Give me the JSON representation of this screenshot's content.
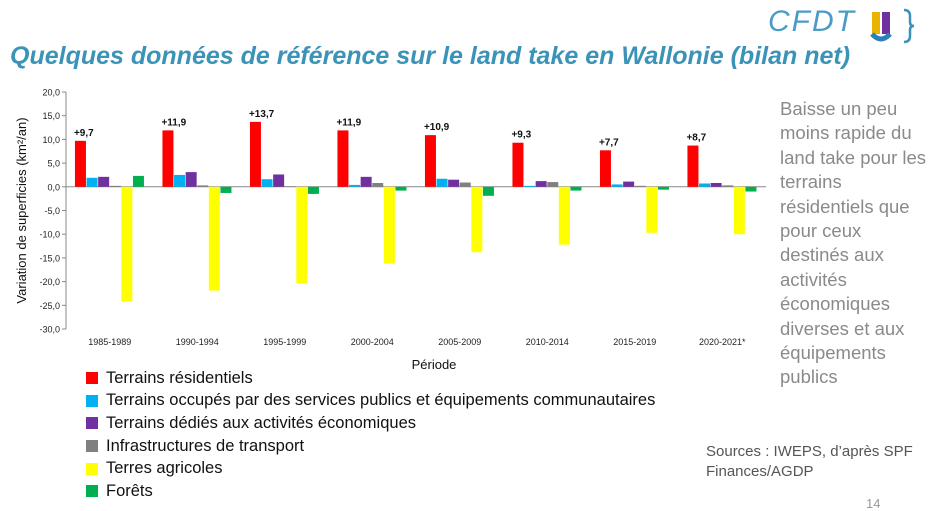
{
  "slide": {
    "title": "Quelques données de référence sur le land take en Wallonie (bilan net)",
    "side_note": "Baisse un peu moins rapide du land take pour les terrains résidentiels que pour ceux destinés aux activités économiques diverses et aux équipements publics",
    "sources": "Sources : IWEPS, d’après SPF Finances/AGDP",
    "page_number": "14",
    "logo_text": "CFDT"
  },
  "chart_data": {
    "type": "bar",
    "title": "",
    "xlabel": "Période",
    "ylabel": "Variation de superficies (km²/an)",
    "ylim": [
      -30,
      20
    ],
    "yticks": [
      "20,0",
      "15,0",
      "10,0",
      "5,0",
      "0,0",
      "-5,0",
      "-10,0",
      "-15,0",
      "-20,0",
      "-25,0",
      "-30,0"
    ],
    "grid": false,
    "legend_position": "bottom-left",
    "categories": [
      "1985-1989",
      "1990-1994",
      "1995-1999",
      "2000-2004",
      "2005-2009",
      "2010-2014",
      "2015-2019",
      "2020-2021*"
    ],
    "series": [
      {
        "name": "Terrains résidentiels",
        "color": "#ff0000",
        "values": [
          9.7,
          11.9,
          13.7,
          11.9,
          10.9,
          9.3,
          7.7,
          8.7
        ]
      },
      {
        "name": "Terrains occupés par des services publics et équipements communautaires",
        "color": "#00b0f0",
        "values": [
          1.9,
          2.5,
          1.6,
          0.4,
          1.7,
          0.2,
          0.5,
          0.7
        ]
      },
      {
        "name": "Terrains dédiés aux activités économiques",
        "color": "#7030a0",
        "values": [
          2.1,
          3.1,
          2.6,
          2.1,
          1.5,
          1.2,
          1.1,
          0.8
        ]
      },
      {
        "name": "Infrastructures de transport",
        "color": "#808080",
        "values": [
          0.2,
          0.3,
          0.1,
          0.8,
          0.9,
          1.0,
          0.2,
          0.3
        ]
      },
      {
        "name": "Terres agricoles",
        "color": "#ffff00",
        "values": [
          -24.2,
          -21.9,
          -20.4,
          -16.2,
          -13.8,
          -12.2,
          -9.7,
          -10.0
        ]
      },
      {
        "name": "Forêts",
        "color": "#00b050",
        "values": [
          2.3,
          -1.3,
          -1.5,
          -0.8,
          -1.9,
          -0.8,
          -0.6,
          -1.0
        ]
      }
    ],
    "data_labels": [
      "+9,7",
      "+11,9",
      "+13,7",
      "+11,9",
      "+10,9",
      "+9,3",
      "+7,7",
      "+8,7"
    ]
  }
}
